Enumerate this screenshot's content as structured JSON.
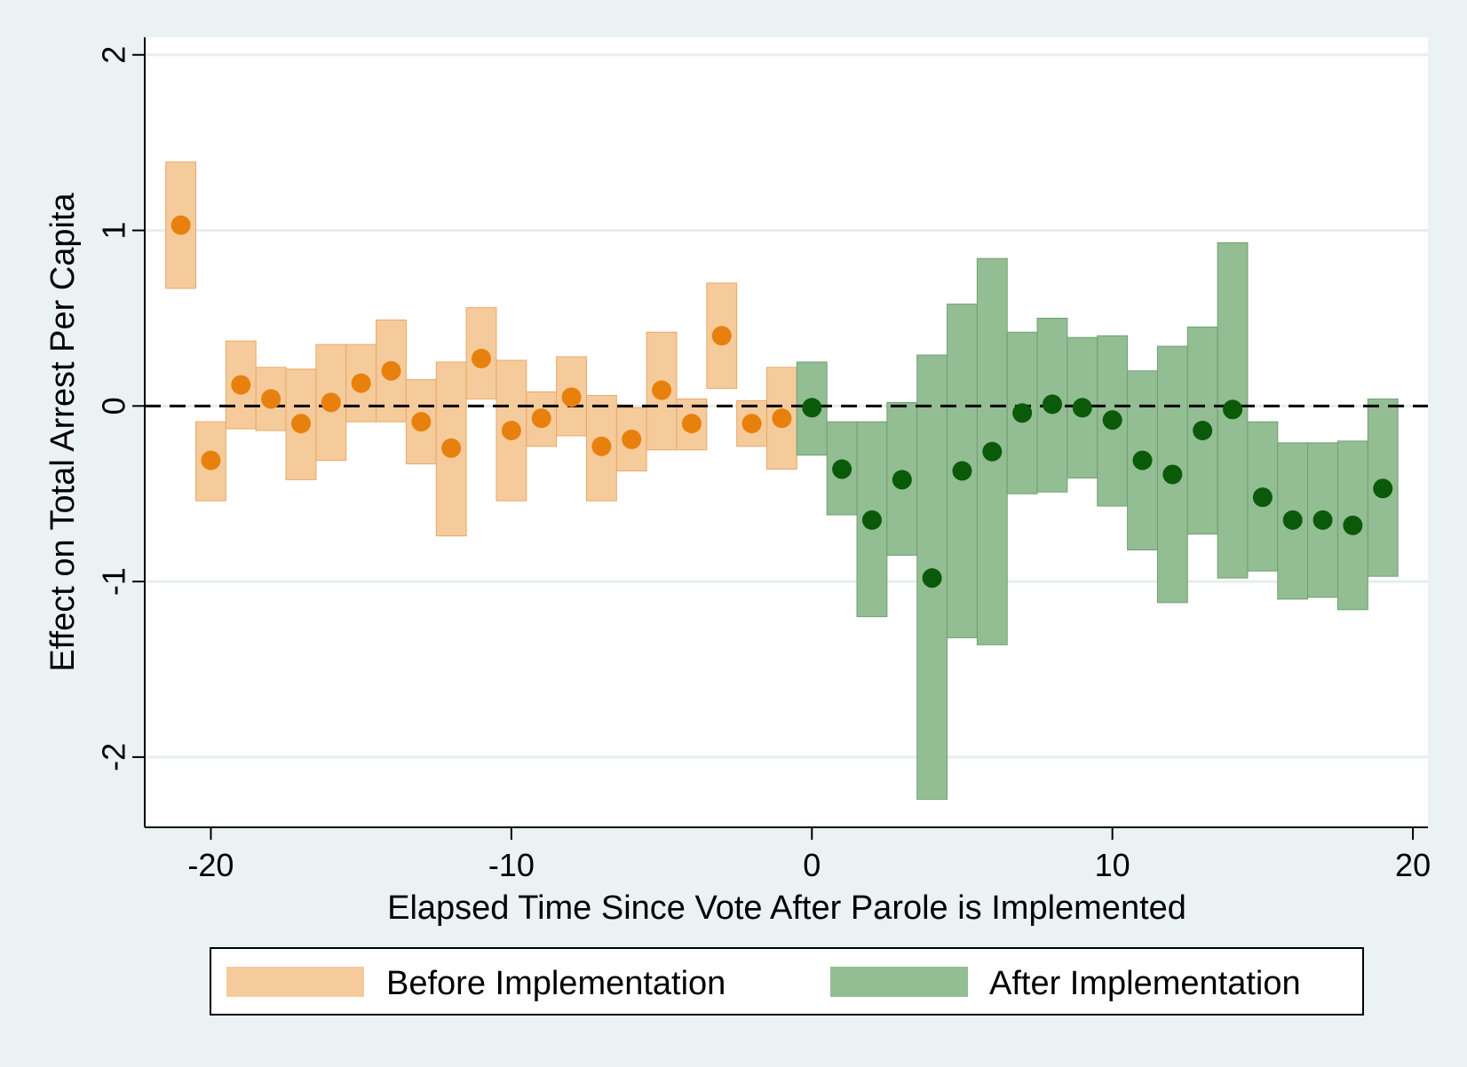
{
  "chart_data": {
    "type": "scatter",
    "title": "",
    "xlabel": "Elapsed Time Since Vote After Parole is Implemented",
    "ylabel": "Effect on Total Arrest Per Capita",
    "xlim": [
      -22.2,
      20.5
    ],
    "ylim": [
      -2.4,
      2.1
    ],
    "xticks": [
      -20,
      -10,
      0,
      10,
      20
    ],
    "yticks": [
      -2,
      -1,
      0,
      1,
      2
    ],
    "xtick_labels": [
      "-20",
      "-10",
      "0",
      "10",
      "20"
    ],
    "ytick_labels": [
      "-2",
      "-1",
      "0",
      "1",
      "2"
    ],
    "grid": true,
    "reference_line": {
      "y": 0,
      "style": "dashed"
    },
    "legend_position": "bottom",
    "colors": {
      "before_fill": "#f5cb9b",
      "before_edge": "#e8a868",
      "before_point": "#e8800e",
      "after_fill": "#93bd93",
      "after_edge": "#6f9f6f",
      "after_point": "#0a5a0a"
    },
    "series": [
      {
        "name": "Before Implementation",
        "x": [
          -21,
          -20,
          -19,
          -18,
          -17,
          -16,
          -15,
          -14,
          -13,
          -12,
          -11,
          -10,
          -9,
          -8,
          -7,
          -6,
          -5,
          -4,
          -3,
          -2,
          -1
        ],
        "y": [
          1.03,
          -0.31,
          0.12,
          0.04,
          -0.1,
          0.02,
          0.13,
          0.2,
          -0.09,
          -0.24,
          0.27,
          -0.14,
          -0.07,
          0.05,
          -0.23,
          -0.19,
          0.09,
          -0.1,
          0.4,
          -0.1,
          -0.07
        ],
        "ci_low": [
          0.67,
          -0.54,
          -0.13,
          -0.14,
          -0.42,
          -0.31,
          -0.09,
          -0.09,
          -0.33,
          -0.74,
          0.04,
          -0.54,
          -0.23,
          -0.17,
          -0.54,
          -0.37,
          -0.25,
          -0.25,
          0.1,
          -0.23,
          -0.36
        ],
        "ci_high": [
          1.39,
          -0.09,
          0.37,
          0.22,
          0.21,
          0.35,
          0.35,
          0.49,
          0.15,
          0.25,
          0.56,
          0.26,
          0.08,
          0.28,
          0.06,
          -0.01,
          0.42,
          0.04,
          0.7,
          0.03,
          0.22
        ]
      },
      {
        "name": "After Implementation",
        "x": [
          0,
          1,
          2,
          3,
          4,
          5,
          6,
          7,
          8,
          9,
          10,
          11,
          12,
          13,
          14,
          15,
          16,
          17,
          18,
          19
        ],
        "y": [
          -0.01,
          -0.36,
          -0.65,
          -0.42,
          -0.98,
          -0.37,
          -0.26,
          -0.04,
          0.01,
          -0.01,
          -0.08,
          -0.31,
          -0.39,
          -0.14,
          -0.02,
          -0.52,
          -0.65,
          -0.65,
          -0.68,
          -0.47
        ],
        "ci_low": [
          -0.28,
          -0.62,
          -1.2,
          -0.85,
          -2.24,
          -1.32,
          -1.36,
          -0.5,
          -0.49,
          -0.41,
          -0.57,
          -0.82,
          -1.12,
          -0.73,
          -0.98,
          -0.94,
          -1.1,
          -1.09,
          -1.16,
          -0.97
        ],
        "ci_high": [
          0.25,
          -0.09,
          -0.09,
          0.02,
          0.29,
          0.58,
          0.84,
          0.42,
          0.5,
          0.39,
          0.4,
          0.2,
          0.34,
          0.45,
          0.93,
          -0.09,
          -0.21,
          -0.21,
          -0.2,
          0.04
        ]
      }
    ]
  }
}
